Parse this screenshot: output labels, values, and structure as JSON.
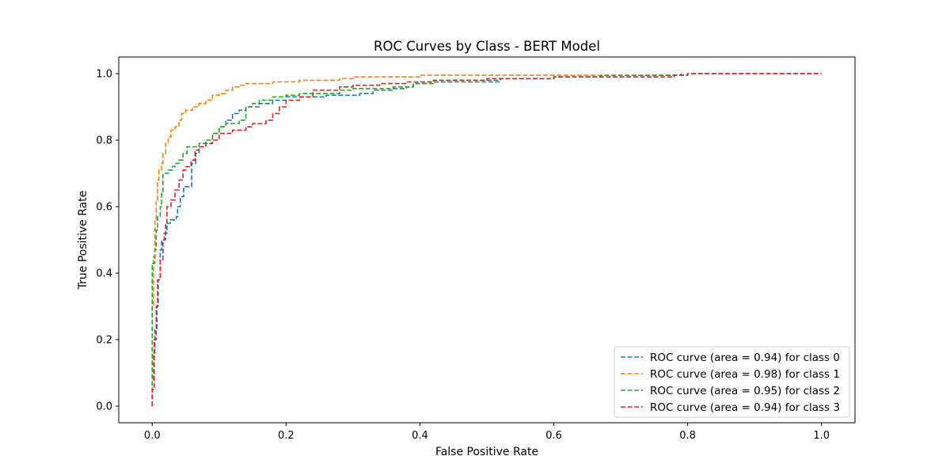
{
  "chart_data": {
    "type": "line",
    "title": "ROC Curves by Class - BERT Model",
    "xlabel": "False Positive Rate",
    "ylabel": "True Positive Rate",
    "xlim": [
      -0.05,
      1.05
    ],
    "ylim": [
      -0.05,
      1.05
    ],
    "xticks": [
      0.0,
      0.2,
      0.4,
      0.6,
      0.8,
      1.0
    ],
    "yticks": [
      0.0,
      0.2,
      0.4,
      0.6,
      0.8,
      1.0
    ],
    "xtick_labels": [
      "0.0",
      "0.2",
      "0.4",
      "0.6",
      "0.8",
      "1.0"
    ],
    "ytick_labels": [
      "0.0",
      "0.2",
      "0.4",
      "0.6",
      "0.8",
      "1.0"
    ],
    "grid": false,
    "legend_position": "lower-right",
    "line_style": "dashed",
    "series": [
      {
        "name": "ROC curve (area = 0.94) for class 0",
        "color": "#1f77b4",
        "points": [
          [
            0,
            0
          ],
          [
            0,
            0.08
          ],
          [
            0.002,
            0.16
          ],
          [
            0.004,
            0.23
          ],
          [
            0.007,
            0.3
          ],
          [
            0.009,
            0.38
          ],
          [
            0.012,
            0.47
          ],
          [
            0.014,
            0.5
          ],
          [
            0.018,
            0.52
          ],
          [
            0.022,
            0.55
          ],
          [
            0.027,
            0.56
          ],
          [
            0.036,
            0.57
          ],
          [
            0.038,
            0.6
          ],
          [
            0.042,
            0.63
          ],
          [
            0.047,
            0.66
          ],
          [
            0.057,
            0.66
          ],
          [
            0.059,
            0.73
          ],
          [
            0.065,
            0.76
          ],
          [
            0.07,
            0.78
          ],
          [
            0.08,
            0.79
          ],
          [
            0.09,
            0.82
          ],
          [
            0.1,
            0.84
          ],
          [
            0.11,
            0.86
          ],
          [
            0.12,
            0.88
          ],
          [
            0.13,
            0.89
          ],
          [
            0.14,
            0.9
          ],
          [
            0.16,
            0.91
          ],
          [
            0.18,
            0.92
          ],
          [
            0.2,
            0.93
          ],
          [
            0.22,
            0.93
          ],
          [
            0.26,
            0.935
          ],
          [
            0.29,
            0.935
          ],
          [
            0.31,
            0.94
          ],
          [
            0.33,
            0.95
          ],
          [
            0.36,
            0.955
          ],
          [
            0.38,
            0.96
          ],
          [
            0.39,
            0.97
          ],
          [
            0.41,
            0.975
          ],
          [
            0.45,
            0.98
          ],
          [
            0.5,
            0.98
          ],
          [
            0.52,
            0.985
          ],
          [
            0.6,
            0.99
          ],
          [
            0.7,
            0.99
          ],
          [
            0.75,
            0.995
          ],
          [
            0.8,
            1.0
          ],
          [
            1.0,
            1.0
          ]
        ]
      },
      {
        "name": "ROC curve (area = 0.98) for class 1",
        "color": "#ff7f0e",
        "points": [
          [
            0,
            0
          ],
          [
            0,
            0.3
          ],
          [
            0.002,
            0.45
          ],
          [
            0.004,
            0.56
          ],
          [
            0.006,
            0.62
          ],
          [
            0.008,
            0.68
          ],
          [
            0.01,
            0.71
          ],
          [
            0.014,
            0.73
          ],
          [
            0.016,
            0.76
          ],
          [
            0.02,
            0.79
          ],
          [
            0.024,
            0.81
          ],
          [
            0.028,
            0.83
          ],
          [
            0.034,
            0.84
          ],
          [
            0.04,
            0.86
          ],
          [
            0.044,
            0.88
          ],
          [
            0.05,
            0.89
          ],
          [
            0.06,
            0.9
          ],
          [
            0.07,
            0.91
          ],
          [
            0.08,
            0.92
          ],
          [
            0.09,
            0.935
          ],
          [
            0.1,
            0.94
          ],
          [
            0.11,
            0.95
          ],
          [
            0.12,
            0.96
          ],
          [
            0.13,
            0.965
          ],
          [
            0.14,
            0.97
          ],
          [
            0.18,
            0.975
          ],
          [
            0.22,
            0.98
          ],
          [
            0.28,
            0.985
          ],
          [
            0.3,
            0.99
          ],
          [
            0.36,
            0.99
          ],
          [
            0.4,
            0.995
          ],
          [
            0.6,
            0.995
          ],
          [
            0.7,
            0.995
          ],
          [
            0.8,
            1.0
          ],
          [
            1.0,
            1.0
          ]
        ]
      },
      {
        "name": "ROC curve (area = 0.95) for class 2",
        "color": "#2ca02c",
        "points": [
          [
            0,
            0
          ],
          [
            0,
            0.43
          ],
          [
            0.004,
            0.47
          ],
          [
            0.006,
            0.53
          ],
          [
            0.008,
            0.57
          ],
          [
            0.012,
            0.6
          ],
          [
            0.014,
            0.64
          ],
          [
            0.016,
            0.7
          ],
          [
            0.024,
            0.71
          ],
          [
            0.03,
            0.72
          ],
          [
            0.034,
            0.73
          ],
          [
            0.04,
            0.74
          ],
          [
            0.046,
            0.76
          ],
          [
            0.052,
            0.78
          ],
          [
            0.062,
            0.78
          ],
          [
            0.07,
            0.79
          ],
          [
            0.08,
            0.8
          ],
          [
            0.09,
            0.82
          ],
          [
            0.1,
            0.84
          ],
          [
            0.11,
            0.85
          ],
          [
            0.13,
            0.86
          ],
          [
            0.14,
            0.9
          ],
          [
            0.15,
            0.91
          ],
          [
            0.16,
            0.92
          ],
          [
            0.18,
            0.93
          ],
          [
            0.2,
            0.935
          ],
          [
            0.22,
            0.94
          ],
          [
            0.28,
            0.95
          ],
          [
            0.3,
            0.955
          ],
          [
            0.36,
            0.96
          ],
          [
            0.39,
            0.97
          ],
          [
            0.42,
            0.975
          ],
          [
            0.52,
            0.98
          ],
          [
            0.52,
            0.985
          ],
          [
            0.6,
            0.99
          ],
          [
            0.67,
            0.995
          ],
          [
            0.7,
            0.995
          ],
          [
            0.79,
            1.0
          ]
        ]
      },
      {
        "name": "ROC curve (area = 0.94) for class 3",
        "color": "#d62728",
        "points": [
          [
            0,
            0
          ],
          [
            0,
            0.05
          ],
          [
            0.003,
            0.2
          ],
          [
            0.006,
            0.3
          ],
          [
            0.008,
            0.38
          ],
          [
            0.012,
            0.44
          ],
          [
            0.016,
            0.5
          ],
          [
            0.02,
            0.55
          ],
          [
            0.022,
            0.6
          ],
          [
            0.028,
            0.62
          ],
          [
            0.034,
            0.65
          ],
          [
            0.04,
            0.68
          ],
          [
            0.046,
            0.71
          ],
          [
            0.05,
            0.72
          ],
          [
            0.058,
            0.74
          ],
          [
            0.064,
            0.77
          ],
          [
            0.07,
            0.78
          ],
          [
            0.08,
            0.79
          ],
          [
            0.09,
            0.8
          ],
          [
            0.1,
            0.82
          ],
          [
            0.12,
            0.83
          ],
          [
            0.14,
            0.84
          ],
          [
            0.15,
            0.85
          ],
          [
            0.17,
            0.86
          ],
          [
            0.18,
            0.88
          ],
          [
            0.19,
            0.9
          ],
          [
            0.2,
            0.92
          ],
          [
            0.22,
            0.93
          ],
          [
            0.24,
            0.95
          ],
          [
            0.28,
            0.96
          ],
          [
            0.3,
            0.965
          ],
          [
            0.34,
            0.97
          ],
          [
            0.38,
            0.975
          ],
          [
            0.42,
            0.98
          ],
          [
            0.5,
            0.985
          ],
          [
            0.6,
            0.99
          ],
          [
            0.7,
            0.99
          ],
          [
            0.78,
            0.995
          ],
          [
            0.8,
            1.0
          ],
          [
            1.0,
            1.0
          ]
        ]
      }
    ]
  }
}
